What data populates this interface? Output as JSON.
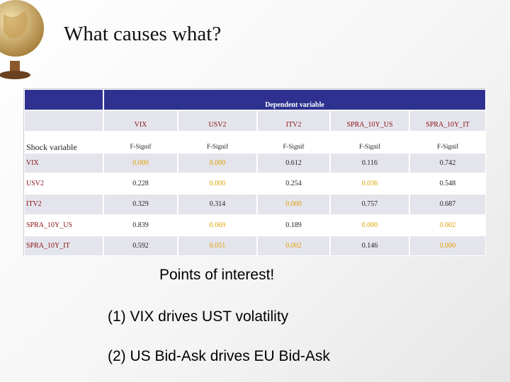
{
  "title": "What causes what?",
  "table": {
    "group_header": "Dependent variable",
    "columns": [
      "VIX",
      "USV2",
      "ITV2",
      "SPRA_10Y_US",
      "SPRA_10Y_IT"
    ],
    "stub_header": "Shock variable",
    "subheader": [
      "F-Signif",
      "F-Signif",
      "F-Signif",
      "F-Signif",
      "F-Signif"
    ],
    "highlight_color": "#e0a000",
    "rows": [
      {
        "label": "VIX",
        "values": [
          "0.000",
          "0.000",
          "0.612",
          "0.116",
          "0.742"
        ],
        "highlight": [
          true,
          true,
          false,
          false,
          false
        ]
      },
      {
        "label": "USV2",
        "values": [
          "0.228",
          "0.000",
          "0.254",
          "0.036",
          "0.548"
        ],
        "highlight": [
          false,
          true,
          false,
          true,
          false
        ]
      },
      {
        "label": "ITV2",
        "values": [
          "0.329",
          "0.314",
          "0.000",
          "0.757",
          "0.687"
        ],
        "highlight": [
          false,
          false,
          true,
          false,
          false
        ]
      },
      {
        "label": "SPRA_10Y_US",
        "values": [
          "0.839",
          "0.069",
          "0.189",
          "0.000",
          "0.002"
        ],
        "highlight": [
          false,
          true,
          false,
          true,
          true
        ]
      },
      {
        "label": "SPRA_10Y_IT",
        "values": [
          "0.592",
          "0.051",
          "0.002",
          "0.146",
          "0.000"
        ],
        "highlight": [
          false,
          true,
          true,
          false,
          true
        ]
      }
    ]
  },
  "notes": {
    "heading": "Points of interest!",
    "items": [
      "(1) VIX drives UST volatility",
      "(2) US Bid-Ask drives EU Bid-Ask"
    ]
  }
}
